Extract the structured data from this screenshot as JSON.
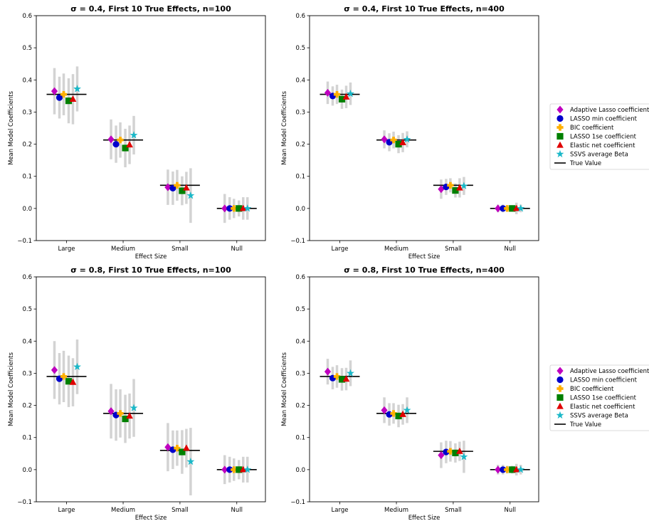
{
  "colors": {
    "Adaptive Lasso coefficient": "#bf00bf",
    "LASSO min coefficient": "#0000cc",
    "BIC coefficient": "#ffb000",
    "LASSO 1se coefficient": "#008000",
    "Elastic net coefficient": "#e00000",
    "SSVS average Beta": "#1ab8c8",
    "True Value": "#000000",
    "errorbar": "#d3d3d3"
  },
  "markers": {
    "Adaptive Lasso coefficient": "diamond",
    "LASSO min coefficient": "circle",
    "BIC coefficient": "plus",
    "LASSO 1se coefficient": "square",
    "Elastic net coefficient": "triangle",
    "SSVS average Beta": "star",
    "True Value": "line"
  },
  "chart_data": [
    {
      "type": "scatter",
      "title": "σ = 0.4, First 10 True Effects, n=100",
      "xlabel": "Effect Size",
      "ylabel": "Mean Model Coefficients",
      "ylim": [
        -0.1,
        0.6
      ],
      "yticks": [
        "−0.1",
        "0.0",
        "0.1",
        "0.2",
        "0.3",
        "0.4",
        "0.5",
        "0.6"
      ],
      "categories": [
        "Large",
        "Medium",
        "Small",
        "Null"
      ],
      "true_values": [
        0.355,
        0.213,
        0.072,
        0.0
      ],
      "series": [
        {
          "name": "Adaptive Lasso coefficient",
          "values": [
            0.365,
            0.215,
            0.066,
            0.0
          ],
          "err": [
            0.072,
            0.062,
            0.055,
            0.045
          ]
        },
        {
          "name": "LASSO min coefficient",
          "values": [
            0.345,
            0.2,
            0.063,
            0.0
          ],
          "err": [
            0.065,
            0.058,
            0.052,
            0.035
          ]
        },
        {
          "name": "BIC coefficient",
          "values": [
            0.355,
            0.213,
            0.072,
            0.0
          ],
          "err": [
            0.065,
            0.055,
            0.048,
            0.03
          ]
        },
        {
          "name": "LASSO 1se coefficient",
          "values": [
            0.335,
            0.188,
            0.055,
            0.0
          ],
          "err": [
            0.07,
            0.06,
            0.045,
            0.025
          ]
        },
        {
          "name": "Elastic net coefficient",
          "values": [
            0.34,
            0.198,
            0.064,
            0.0
          ],
          "err": [
            0.078,
            0.06,
            0.05,
            0.035
          ]
        },
        {
          "name": "SSVS average Beta",
          "values": [
            0.372,
            0.228,
            0.04,
            0.0
          ],
          "err": [
            0.07,
            0.06,
            0.085,
            0.035
          ]
        }
      ],
      "legend": "none"
    },
    {
      "type": "scatter",
      "title": "σ = 0.4, First 10 True Effects, n=400",
      "xlabel": "Effect Size",
      "ylabel": "Mean Model Coefficients",
      "ylim": [
        -0.1,
        0.6
      ],
      "yticks": [
        "−0.1",
        "0.0",
        "0.1",
        "0.2",
        "0.3",
        "0.4",
        "0.5",
        "0.6"
      ],
      "categories": [
        "Large",
        "Medium",
        "Small",
        "Null"
      ],
      "true_values": [
        0.355,
        0.213,
        0.072,
        0.0
      ],
      "series": [
        {
          "name": "Adaptive Lasso coefficient",
          "values": [
            0.36,
            0.215,
            0.06,
            0.0
          ],
          "err": [
            0.035,
            0.028,
            0.03,
            0.012
          ]
        },
        {
          "name": "LASSO min coefficient",
          "values": [
            0.35,
            0.206,
            0.067,
            0.0
          ],
          "err": [
            0.03,
            0.028,
            0.025,
            0.012
          ]
        },
        {
          "name": "BIC coefficient",
          "values": [
            0.355,
            0.213,
            0.072,
            0.0
          ],
          "err": [
            0.03,
            0.026,
            0.022,
            0.01
          ]
        },
        {
          "name": "LASSO 1se coefficient",
          "values": [
            0.34,
            0.2,
            0.056,
            0.0
          ],
          "err": [
            0.03,
            0.028,
            0.022,
            0.01
          ]
        },
        {
          "name": "Elastic net coefficient",
          "values": [
            0.347,
            0.205,
            0.064,
            0.0
          ],
          "err": [
            0.035,
            0.03,
            0.03,
            0.018
          ]
        },
        {
          "name": "SSVS average Beta",
          "values": [
            0.357,
            0.215,
            0.07,
            0.0
          ],
          "err": [
            0.035,
            0.025,
            0.028,
            0.012
          ]
        }
      ],
      "legend": "right"
    },
    {
      "type": "scatter",
      "title": "σ = 0.8, First 10 True Effects, n=100",
      "xlabel": "Effect Size",
      "ylabel": "Mean Model Coefficients",
      "ylim": [
        -0.1,
        0.6
      ],
      "yticks": [
        "−0.1",
        "0.0",
        "0.1",
        "0.2",
        "0.3",
        "0.4",
        "0.5",
        "0.6"
      ],
      "categories": [
        "Large",
        "Medium",
        "Small",
        "Null"
      ],
      "true_values": [
        0.29,
        0.175,
        0.06,
        0.0
      ],
      "series": [
        {
          "name": "Adaptive Lasso coefficient",
          "values": [
            0.31,
            0.182,
            0.07,
            0.0
          ],
          "err": [
            0.09,
            0.085,
            0.075,
            0.045
          ]
        },
        {
          "name": "LASSO min coefficient",
          "values": [
            0.283,
            0.17,
            0.062,
            0.0
          ],
          "err": [
            0.08,
            0.08,
            0.06,
            0.04
          ]
        },
        {
          "name": "BIC coefficient",
          "values": [
            0.29,
            0.175,
            0.067,
            0.0
          ],
          "err": [
            0.08,
            0.075,
            0.055,
            0.035
          ]
        },
        {
          "name": "LASSO 1se coefficient",
          "values": [
            0.275,
            0.158,
            0.055,
            0.0
          ],
          "err": [
            0.08,
            0.075,
            0.068,
            0.03
          ]
        },
        {
          "name": "Elastic net coefficient",
          "values": [
            0.272,
            0.167,
            0.067,
            0.0
          ],
          "err": [
            0.075,
            0.07,
            0.06,
            0.04
          ]
        },
        {
          "name": "SSVS average Beta",
          "values": [
            0.32,
            0.192,
            0.025,
            0.0
          ],
          "err": [
            0.085,
            0.09,
            0.105,
            0.04
          ]
        }
      ],
      "legend": "none"
    },
    {
      "type": "scatter",
      "title": "σ = 0.8, First 10 True Effects, n=400",
      "xlabel": "Effect Size",
      "ylabel": "Mean Model Coefficients",
      "ylim": [
        -0.1,
        0.6
      ],
      "yticks": [
        "−0.1",
        "0.0",
        "0.1",
        "0.2",
        "0.3",
        "0.4",
        "0.5",
        "0.6"
      ],
      "categories": [
        "Large",
        "Medium",
        "Small",
        "Null"
      ],
      "true_values": [
        0.29,
        0.175,
        0.057,
        0.0
      ],
      "series": [
        {
          "name": "Adaptive Lasso coefficient",
          "values": [
            0.305,
            0.185,
            0.045,
            0.0
          ],
          "err": [
            0.04,
            0.04,
            0.04,
            0.015
          ]
        },
        {
          "name": "LASSO min coefficient",
          "values": [
            0.285,
            0.172,
            0.055,
            0.0
          ],
          "err": [
            0.035,
            0.035,
            0.035,
            0.015
          ]
        },
        {
          "name": "BIC coefficient",
          "values": [
            0.29,
            0.175,
            0.057,
            0.0
          ],
          "err": [
            0.035,
            0.032,
            0.032,
            0.012
          ]
        },
        {
          "name": "LASSO 1se coefficient",
          "values": [
            0.281,
            0.167,
            0.052,
            0.0
          ],
          "err": [
            0.035,
            0.035,
            0.03,
            0.012
          ]
        },
        {
          "name": "Elastic net coefficient",
          "values": [
            0.282,
            0.172,
            0.057,
            0.0
          ],
          "err": [
            0.035,
            0.032,
            0.03,
            0.018
          ]
        },
        {
          "name": "SSVS average Beta",
          "values": [
            0.3,
            0.185,
            0.04,
            0.0
          ],
          "err": [
            0.04,
            0.04,
            0.05,
            0.015
          ]
        }
      ],
      "legend": "right"
    }
  ],
  "legend": {
    "entries": [
      "Adaptive Lasso coefficient",
      "LASSO min coefficient",
      "BIC coefficient",
      "LASSO 1se coefficient",
      "Elastic net coefficient",
      "SSVS average Beta",
      "True Value"
    ]
  }
}
